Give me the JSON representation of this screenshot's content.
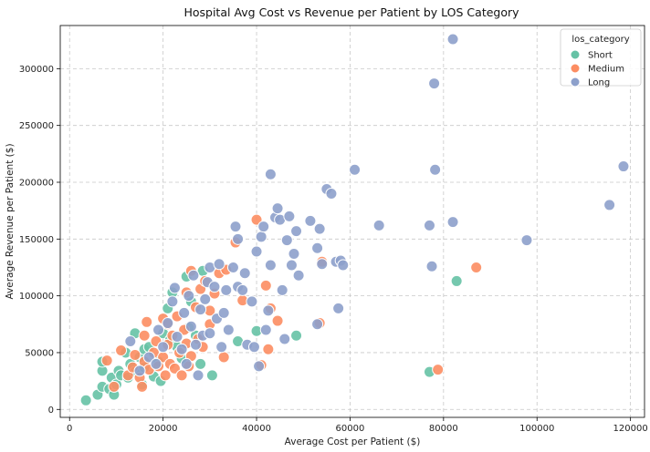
{
  "chart_data": {
    "type": "scatter",
    "title": "Hospital Avg Cost vs Revenue per Patient by LOS Category",
    "xlabel": "Average Cost per Patient ($)",
    "ylabel": "Average Revenue per Patient ($)",
    "xlim": [
      -2000,
      123000
    ],
    "ylim": [
      -7000,
      338000
    ],
    "xticks": [
      0,
      20000,
      40000,
      60000,
      80000,
      100000,
      120000
    ],
    "yticks": [
      0,
      50000,
      100000,
      150000,
      200000,
      250000,
      300000
    ],
    "grid": true,
    "legend": {
      "title": "los_category",
      "position": "top-right"
    },
    "series": [
      {
        "name": "Short",
        "color": "#66c2a5",
        "points": [
          [
            3500,
            8000
          ],
          [
            6000,
            13000
          ],
          [
            7000,
            20000
          ],
          [
            7000,
            34000
          ],
          [
            7000,
            42000
          ],
          [
            8500,
            18000
          ],
          [
            9000,
            28000
          ],
          [
            9500,
            13000
          ],
          [
            10000,
            22000
          ],
          [
            10500,
            34000
          ],
          [
            11000,
            30000
          ],
          [
            12000,
            50000
          ],
          [
            12500,
            28000
          ],
          [
            13000,
            40000
          ],
          [
            14000,
            67000
          ],
          [
            14000,
            33000
          ],
          [
            15000,
            46000
          ],
          [
            15500,
            22000
          ],
          [
            16000,
            37000
          ],
          [
            16000,
            53000
          ],
          [
            17000,
            55000
          ],
          [
            18000,
            29000
          ],
          [
            19000,
            42000
          ],
          [
            19500,
            25000
          ],
          [
            20000,
            67000
          ],
          [
            21000,
            89000
          ],
          [
            21500,
            61000
          ],
          [
            22000,
            103000
          ],
          [
            23000,
            55000
          ],
          [
            24000,
            45000
          ],
          [
            25000,
            117000
          ],
          [
            25500,
            72000
          ],
          [
            26000,
            95000
          ],
          [
            27000,
            65000
          ],
          [
            28000,
            40000
          ],
          [
            28500,
            122000
          ],
          [
            30500,
            30000
          ],
          [
            36000,
            60000
          ],
          [
            40000,
            69000
          ],
          [
            48500,
            65000
          ],
          [
            77000,
            33000
          ],
          [
            82800,
            113000
          ]
        ]
      },
      {
        "name": "Medium",
        "color": "#fc8d62",
        "points": [
          [
            8000,
            43000
          ],
          [
            9500,
            20000
          ],
          [
            11000,
            52000
          ],
          [
            12500,
            30000
          ],
          [
            13500,
            37000
          ],
          [
            14000,
            48000
          ],
          [
            15000,
            28000
          ],
          [
            15500,
            20000
          ],
          [
            16000,
            65000
          ],
          [
            16000,
            42000
          ],
          [
            16500,
            77000
          ],
          [
            17000,
            35000
          ],
          [
            18000,
            50000
          ],
          [
            18500,
            60000
          ],
          [
            19000,
            38000
          ],
          [
            20000,
            80000
          ],
          [
            20000,
            46000
          ],
          [
            20500,
            30000
          ],
          [
            21000,
            57000
          ],
          [
            21000,
            75000
          ],
          [
            21500,
            40000
          ],
          [
            22000,
            65000
          ],
          [
            22500,
            36000
          ],
          [
            23000,
            82000
          ],
          [
            23500,
            50000
          ],
          [
            24000,
            30000
          ],
          [
            24500,
            70000
          ],
          [
            25000,
            103000
          ],
          [
            25000,
            58000
          ],
          [
            25500,
            38000
          ],
          [
            26000,
            122000
          ],
          [
            26000,
            47000
          ],
          [
            27000,
            90000
          ],
          [
            27500,
            62000
          ],
          [
            28000,
            106000
          ],
          [
            28500,
            55000
          ],
          [
            29000,
            113000
          ],
          [
            30000,
            87000
          ],
          [
            30000,
            75000
          ],
          [
            31000,
            102000
          ],
          [
            32000,
            120000
          ],
          [
            33000,
            46000
          ],
          [
            33500,
            123000
          ],
          [
            35500,
            147000
          ],
          [
            37000,
            96000
          ],
          [
            40000,
            167000
          ],
          [
            41000,
            39000
          ],
          [
            42000,
            109000
          ],
          [
            42500,
            53000
          ],
          [
            43000,
            89000
          ],
          [
            44500,
            78000
          ],
          [
            53500,
            76000
          ],
          [
            54000,
            130000
          ],
          [
            78800,
            35000
          ],
          [
            87000,
            125000
          ]
        ]
      },
      {
        "name": "Long",
        "color": "#8da0cb",
        "points": [
          [
            13000,
            60000
          ],
          [
            15000,
            34000
          ],
          [
            17000,
            46000
          ],
          [
            18500,
            40000
          ],
          [
            19000,
            70000
          ],
          [
            20000,
            55000
          ],
          [
            21000,
            76000
          ],
          [
            22000,
            95000
          ],
          [
            22500,
            107000
          ],
          [
            23000,
            64000
          ],
          [
            24000,
            53000
          ],
          [
            24500,
            85000
          ],
          [
            25000,
            40000
          ],
          [
            25500,
            100000
          ],
          [
            26000,
            73000
          ],
          [
            26500,
            118000
          ],
          [
            27000,
            57000
          ],
          [
            27500,
            30000
          ],
          [
            28000,
            88000
          ],
          [
            28500,
            65000
          ],
          [
            29000,
            97000
          ],
          [
            29500,
            112000
          ],
          [
            30000,
            125000
          ],
          [
            30000,
            67000
          ],
          [
            31000,
            108000
          ],
          [
            31500,
            80000
          ],
          [
            32000,
            128000
          ],
          [
            32500,
            55000
          ],
          [
            33000,
            85000
          ],
          [
            33500,
            105000
          ],
          [
            34000,
            70000
          ],
          [
            35000,
            125000
          ],
          [
            35500,
            161000
          ],
          [
            36000,
            108000
          ],
          [
            36000,
            150000
          ],
          [
            37000,
            105000
          ],
          [
            37500,
            120000
          ],
          [
            38000,
            57000
          ],
          [
            39000,
            95000
          ],
          [
            39500,
            55000
          ],
          [
            40000,
            139000
          ],
          [
            40500,
            38000
          ],
          [
            41000,
            152000
          ],
          [
            41500,
            161000
          ],
          [
            42000,
            70000
          ],
          [
            42500,
            87000
          ],
          [
            43000,
            207000
          ],
          [
            43000,
            127000
          ],
          [
            44000,
            169000
          ],
          [
            44500,
            177000
          ],
          [
            45000,
            167000
          ],
          [
            45500,
            105000
          ],
          [
            46000,
            62000
          ],
          [
            46500,
            149000
          ],
          [
            47000,
            170000
          ],
          [
            47500,
            127000
          ],
          [
            48000,
            137000
          ],
          [
            48500,
            157000
          ],
          [
            49000,
            118000
          ],
          [
            51500,
            166000
          ],
          [
            53000,
            142000
          ],
          [
            53500,
            159000
          ],
          [
            53000,
            75000
          ],
          [
            54000,
            128000
          ],
          [
            55000,
            194000
          ],
          [
            56000,
            190000
          ],
          [
            57000,
            130000
          ],
          [
            57500,
            89000
          ],
          [
            58000,
            131000
          ],
          [
            58500,
            127000
          ],
          [
            61000,
            211000
          ],
          [
            66200,
            162000
          ],
          [
            77000,
            162000
          ],
          [
            77500,
            126000
          ],
          [
            78000,
            287000
          ],
          [
            78200,
            211000
          ],
          [
            82000,
            165000
          ],
          [
            82000,
            326000
          ],
          [
            97800,
            149000
          ],
          [
            115500,
            180000
          ],
          [
            118500,
            214000
          ]
        ]
      }
    ]
  }
}
